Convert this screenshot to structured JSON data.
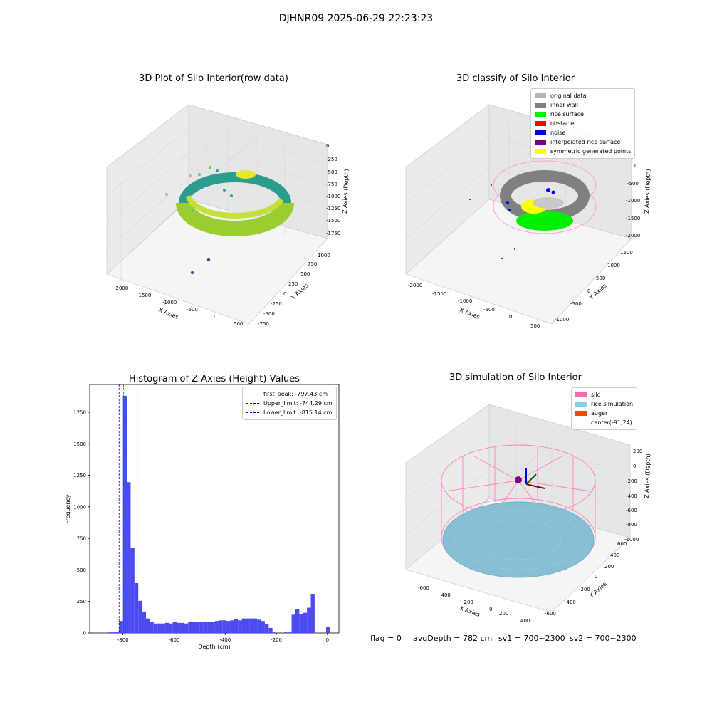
{
  "figure": {
    "suptitle": "DJHNR09 2025-06-29 22:23:23",
    "status": {
      "flag": "flag = 0",
      "avg_depth": "avgDepth = 782 cm",
      "sv1": "sv1 = 700~2300",
      "sv2": "sv2 = 700~2300"
    }
  },
  "panels": {
    "raw": {
      "title": "3D Plot of Silo Interior(row data)",
      "xlabel": "X Axies",
      "ylabel": "Y Axies",
      "zlabel": "Z Axies (Depth)",
      "x_ticks": [
        "-2000",
        "-1500",
        "-1000",
        "-500",
        "0",
        "500"
      ],
      "y_ticks": [
        "-750",
        "-500",
        "-250",
        "0",
        "250",
        "500",
        "750",
        "1000"
      ],
      "z_ticks": [
        "0",
        "-250",
        "-500",
        "-750",
        "-1000",
        "-1250",
        "-1500",
        "-1750"
      ]
    },
    "classify": {
      "title": "3D classify of Silo Interior",
      "xlabel": "X Axies",
      "ylabel": "Y Axies",
      "zlabel": "Z Axies (Depth)",
      "x_ticks": [
        "-2000",
        "-1500",
        "-1000",
        "-500",
        "0",
        "500"
      ],
      "y_ticks": [
        "-1000",
        "-500",
        "0",
        "500",
        "1000",
        "1500"
      ],
      "z_ticks": [
        "0",
        "-500",
        "-1000",
        "-1500",
        "-2000"
      ],
      "legend": [
        {
          "label": "original data",
          "color": "#b4b4b4"
        },
        {
          "label": "inner wall",
          "color": "#808080"
        },
        {
          "label": "rice surface",
          "color": "#00ee00"
        },
        {
          "label": "obstacle",
          "color": "#ff0000"
        },
        {
          "label": "noise",
          "color": "#0000ee"
        },
        {
          "label": "interpolated rice surface",
          "color": "#800080"
        },
        {
          "label": "symmetric generated points",
          "color": "#ffff00"
        }
      ]
    },
    "simulation": {
      "title": "3D simulation of Silo Interior",
      "xlabel": "X Axies",
      "ylabel": "Y Axies",
      "zlabel": "Z Axies (Depth)",
      "x_ticks": [
        "-600",
        "-400",
        "-200",
        "0",
        "200",
        "400"
      ],
      "y_ticks": [
        "-600",
        "-400",
        "-200",
        "0",
        "200",
        "400",
        "600"
      ],
      "z_ticks": [
        "200",
        "0",
        "-200",
        "-400",
        "-600",
        "-800",
        "-1000"
      ],
      "legend": [
        {
          "label": "silo",
          "color": "#ff69b4"
        },
        {
          "label": "rice simulation",
          "color": "#87ceeb"
        },
        {
          "label": "auger",
          "color": "#ff4500"
        },
        {
          "label": "center(-91,24)",
          "color": ""
        }
      ]
    }
  },
  "chart_data": [
    {
      "type": "scatter",
      "title": "3D Plot of Silo Interior(row data)",
      "xlabel": "X Axies",
      "ylabel": "Y Axies",
      "zlabel": "Z Axies (Depth)",
      "xlim": [
        -2100,
        600
      ],
      "ylim": [
        -800,
        1100
      ],
      "zlim": [
        -1900,
        100
      ]
    },
    {
      "type": "scatter",
      "title": "3D classify of Silo Interior",
      "xlabel": "X Axies",
      "ylabel": "Y Axies",
      "zlabel": "Z Axies (Depth)",
      "xlim": [
        -2100,
        600
      ],
      "ylim": [
        -1100,
        1600
      ],
      "zlim": [
        -2100,
        100
      ],
      "series": [
        {
          "name": "original data"
        },
        {
          "name": "inner wall"
        },
        {
          "name": "rice surface"
        },
        {
          "name": "obstacle"
        },
        {
          "name": "noise"
        },
        {
          "name": "interpolated rice surface"
        },
        {
          "name": "symmetric generated points"
        }
      ]
    },
    {
      "type": "bar",
      "title": "Histogram of Z-Axies (Height) Values",
      "xlabel": "Depth (cm)",
      "ylabel": "Frequency",
      "xlim": [
        -930,
        45
      ],
      "ylim": [
        0,
        1970
      ],
      "x_ticks": [
        -800,
        -600,
        -400,
        -200,
        0
      ],
      "y_ticks": [
        0,
        250,
        500,
        750,
        1000,
        1250,
        1500,
        1750
      ],
      "bin_width": 15,
      "bins": [
        {
          "x": -860,
          "value": 5
        },
        {
          "x": -845,
          "value": 5
        },
        {
          "x": -830,
          "value": 10
        },
        {
          "x": -815,
          "value": 95
        },
        {
          "x": -800,
          "value": 1880
        },
        {
          "x": -785,
          "value": 1195
        },
        {
          "x": -770,
          "value": 675
        },
        {
          "x": -755,
          "value": 395
        },
        {
          "x": -740,
          "value": 255
        },
        {
          "x": -725,
          "value": 170
        },
        {
          "x": -710,
          "value": 115
        },
        {
          "x": -695,
          "value": 85
        },
        {
          "x": -680,
          "value": 75
        },
        {
          "x": -665,
          "value": 75
        },
        {
          "x": -650,
          "value": 75
        },
        {
          "x": -635,
          "value": 80
        },
        {
          "x": -620,
          "value": 75
        },
        {
          "x": -605,
          "value": 85
        },
        {
          "x": -590,
          "value": 80
        },
        {
          "x": -575,
          "value": 80
        },
        {
          "x": -560,
          "value": 75
        },
        {
          "x": -545,
          "value": 85
        },
        {
          "x": -530,
          "value": 85
        },
        {
          "x": -515,
          "value": 85
        },
        {
          "x": -500,
          "value": 85
        },
        {
          "x": -485,
          "value": 85
        },
        {
          "x": -470,
          "value": 90
        },
        {
          "x": -455,
          "value": 90
        },
        {
          "x": -440,
          "value": 95
        },
        {
          "x": -425,
          "value": 100
        },
        {
          "x": -410,
          "value": 100
        },
        {
          "x": -395,
          "value": 95
        },
        {
          "x": -380,
          "value": 100
        },
        {
          "x": -365,
          "value": 110
        },
        {
          "x": -350,
          "value": 100
        },
        {
          "x": -335,
          "value": 115
        },
        {
          "x": -320,
          "value": 115
        },
        {
          "x": -305,
          "value": 115
        },
        {
          "x": -290,
          "value": 115
        },
        {
          "x": -275,
          "value": 105
        },
        {
          "x": -260,
          "value": 95
        },
        {
          "x": -245,
          "value": 70
        },
        {
          "x": -230,
          "value": 40
        },
        {
          "x": -215,
          "value": 5
        },
        {
          "x": -200,
          "value": 0
        },
        {
          "x": -185,
          "value": 0
        },
        {
          "x": -170,
          "value": 5
        },
        {
          "x": -155,
          "value": 5
        },
        {
          "x": -140,
          "value": 145
        },
        {
          "x": -125,
          "value": 190
        },
        {
          "x": -110,
          "value": 150
        },
        {
          "x": -95,
          "value": 160
        },
        {
          "x": -80,
          "value": 200
        },
        {
          "x": -65,
          "value": 310
        },
        {
          "x": -50,
          "value": 0
        },
        {
          "x": -35,
          "value": 0
        },
        {
          "x": -20,
          "value": 0
        },
        {
          "x": -5,
          "value": 50
        }
      ],
      "reference_lines": [
        {
          "label": "first_peak: -797.43 cm",
          "x": -797.43,
          "color": "#ff0000"
        },
        {
          "label": "Upper_limit: -744.29 cm",
          "x": -744.29,
          "color": "#0000ff"
        },
        {
          "label": "Lower_limit: -815.14 cm",
          "x": -815.14,
          "color": "#0000ff"
        }
      ]
    },
    {
      "type": "scatter",
      "title": "3D simulation of Silo Interior",
      "xlabel": "X Axies",
      "ylabel": "Y Axies",
      "zlabel": "Z Axies (Depth)",
      "xlim": [
        -700,
        500
      ],
      "ylim": [
        -650,
        650
      ],
      "zlim": [
        -1100,
        300
      ],
      "center": [
        -91,
        24
      ],
      "series": [
        {
          "name": "silo"
        },
        {
          "name": "rice simulation"
        },
        {
          "name": "auger"
        }
      ]
    }
  ]
}
